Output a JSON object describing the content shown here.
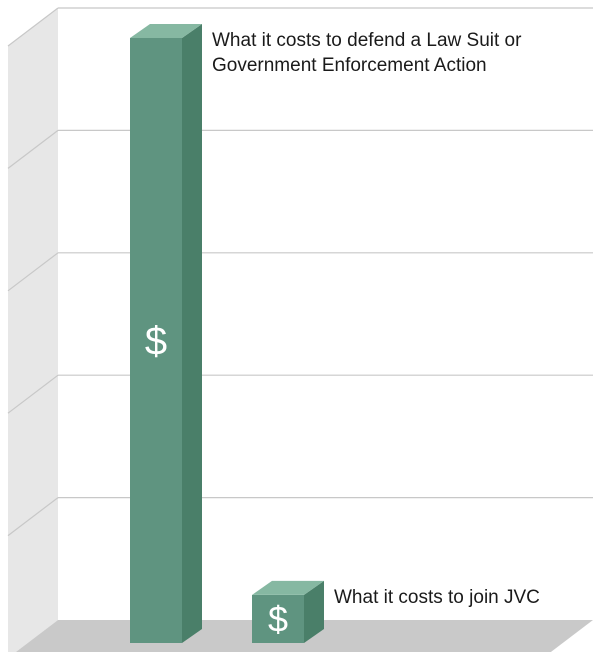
{
  "chart_data": {
    "type": "bar",
    "style": "3d",
    "categories": [
      "What it costs to defend a Law Suit or Government Enforcement Action",
      "What it costs to join JVC"
    ],
    "label_lines": [
      [
        "What it costs to defend a Law Suit or",
        "Government Enforcement Action"
      ],
      [
        "What it costs to join JVC"
      ]
    ],
    "values": [
      100,
      9
    ],
    "value_unit": "relative cost",
    "bar_symbols": [
      "$",
      "$"
    ],
    "title": "",
    "xlabel": "",
    "ylabel": "",
    "ylim": [
      0,
      100
    ],
    "grid": true,
    "gridlines": 5,
    "legend": "none",
    "colors": {
      "bar_front": "#5f9480",
      "bar_side": "#4a7f69",
      "bar_top": "#86b8a2",
      "symbol": "#ffffff",
      "back_wall": "#ffffff",
      "side_wall": "#e7e7e7",
      "floor": "#c9c9c9",
      "grid": "#c8c8c8"
    }
  }
}
